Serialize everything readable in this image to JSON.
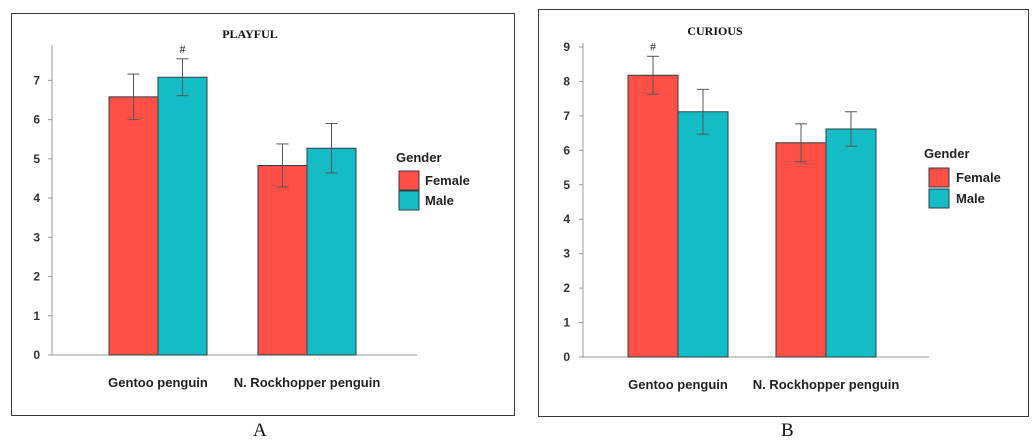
{
  "panel_letters": [
    "A",
    "B"
  ],
  "legend": {
    "title": "Gender",
    "items": [
      {
        "label": "Female",
        "color": "#ff4f47"
      },
      {
        "label": "Male",
        "color": "#14bdc5"
      }
    ]
  },
  "chart_data": [
    {
      "type": "bar",
      "title": "PLAYFUL",
      "categories": [
        "Gentoo penguin",
        "N. Rockhopper penguin"
      ],
      "series": [
        {
          "name": "Female",
          "color": "#ff4f47",
          "values": [
            6.58,
            4.83
          ],
          "error": [
            0.58,
            0.55
          ]
        },
        {
          "name": "Male",
          "color": "#14bdc5",
          "values": [
            7.08,
            5.27
          ],
          "error": [
            0.47,
            0.63
          ]
        }
      ],
      "annotations": [
        {
          "text": "#",
          "category": 0,
          "series": 1
        }
      ],
      "yticks": [
        0,
        1,
        2,
        3,
        4,
        5,
        6,
        7
      ],
      "ylim": [
        0,
        7.8
      ],
      "xlabel": "",
      "ylabel": "",
      "legend_position": "right"
    },
    {
      "type": "bar",
      "title": "CURIOUS",
      "categories": [
        "Gentoo penguin",
        "N. Rockhopper penguin"
      ],
      "series": [
        {
          "name": "Female",
          "color": "#ff4f47",
          "values": [
            8.18,
            6.22
          ],
          "error": [
            0.55,
            0.55
          ]
        },
        {
          "name": "Male",
          "color": "#14bdc5",
          "values": [
            7.12,
            6.62
          ],
          "error": [
            0.65,
            0.5
          ]
        }
      ],
      "annotations": [
        {
          "text": "#",
          "category": 0,
          "series": 0
        }
      ],
      "yticks": [
        0,
        1,
        2,
        3,
        4,
        5,
        6,
        7,
        8,
        9
      ],
      "ylim": [
        0,
        9
      ],
      "xlabel": "",
      "ylabel": "",
      "legend_position": "right"
    }
  ]
}
